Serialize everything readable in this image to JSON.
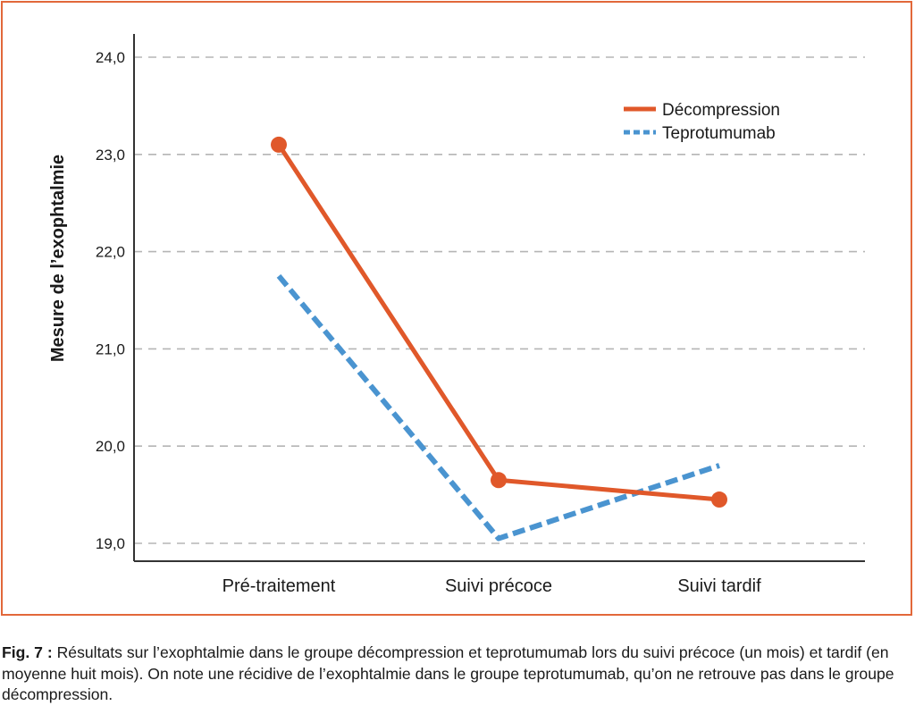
{
  "chart_data": {
    "type": "line",
    "title": "",
    "xlabel": "",
    "ylabel": "Mesure de l’exophtalmie",
    "categories": [
      "Pré-traitement",
      "Suivi précoce",
      "Suivi tardif"
    ],
    "ylim": [
      18.8,
      24.3
    ],
    "yticks": [
      19,
      20,
      21,
      22,
      23,
      24
    ],
    "ytick_labels": [
      "19,0",
      "20,0",
      "21,0",
      "22,0",
      "23,0",
      "24,0"
    ],
    "grid": true,
    "legend_position": "top-right",
    "series": [
      {
        "name": "Décompression",
        "values": [
          23.1,
          19.65,
          19.45
        ],
        "color": "#e0582a",
        "style": "solid",
        "markers": true
      },
      {
        "name": "Teprotumumab",
        "values": [
          21.75,
          19.05,
          19.8
        ],
        "color": "#4a94d0",
        "style": "dashed",
        "markers": false
      }
    ]
  },
  "caption": {
    "label": "Fig. 7 :",
    "text": " Résultats sur l’exophtalmie dans le groupe décompression et teprotumumab lors du suivi précoce (un mois) et tardif (en moyenne huit mois). On note une récidive de l’exophtalmie dans le groupe teprotumumab, qu’on ne retrouve pas dans le groupe décompression."
  },
  "colors": {
    "frame": "#e2683a",
    "grid": "#b5b5b5",
    "axis": "#333333"
  }
}
